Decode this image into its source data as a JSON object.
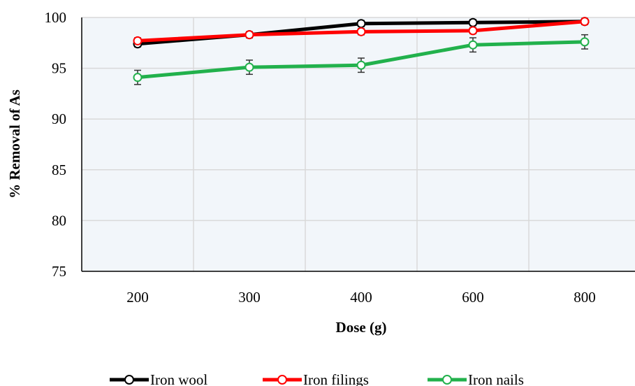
{
  "chart_data": {
    "type": "line",
    "title": "",
    "xlabel": "Dose (g)",
    "ylabel": "% Removal of As",
    "categories": [
      "200",
      "300",
      "400",
      "600",
      "800"
    ],
    "ylim": [
      75,
      100
    ],
    "yticks": [
      75,
      80,
      85,
      90,
      95,
      100
    ],
    "grid": true,
    "legend_position": "bottom",
    "plot_background": "#f2f6fa",
    "series": [
      {
        "name": "Iron wool",
        "color": "#000000",
        "values": [
          97.4,
          98.3,
          99.4,
          99.5,
          99.6
        ],
        "errors": [
          0.3,
          0.3,
          0.3,
          0.3,
          0.3
        ]
      },
      {
        "name": "Iron filings",
        "color": "#ff0000",
        "values": [
          97.7,
          98.3,
          98.6,
          98.7,
          99.6
        ],
        "errors": [
          0.3,
          0.3,
          0.3,
          0.3,
          0.3
        ]
      },
      {
        "name": "Iron nails",
        "color": "#22b14c",
        "values": [
          94.1,
          95.1,
          95.3,
          97.3,
          97.6
        ],
        "errors": [
          0.7,
          0.7,
          0.7,
          0.7,
          0.7
        ]
      }
    ]
  }
}
